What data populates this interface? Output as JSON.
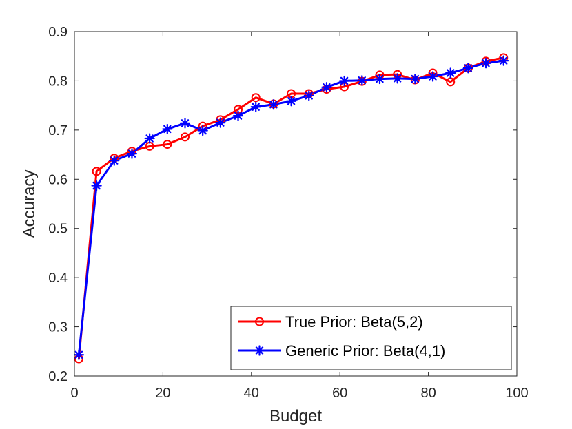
{
  "chart_data": {
    "type": "line",
    "xlabel": "Budget",
    "ylabel": "Accuracy",
    "xlim": [
      0,
      100
    ],
    "ylim": [
      0.2,
      0.9
    ],
    "xticks": [
      0,
      20,
      40,
      60,
      80,
      100
    ],
    "yticks": [
      0.2,
      0.3,
      0.4,
      0.5,
      0.6,
      0.7,
      0.8,
      0.9
    ],
    "xtick_labels": [
      "0",
      "20",
      "40",
      "60",
      "80",
      "100"
    ],
    "ytick_labels": [
      "0.2",
      "0.3",
      "0.4",
      "0.5",
      "0.6",
      "0.7",
      "0.8",
      "0.9"
    ],
    "grid": false,
    "legend_position": "bottom-right",
    "x": [
      1,
      5,
      9,
      13,
      17,
      21,
      25,
      29,
      33,
      37,
      41,
      45,
      49,
      53,
      57,
      61,
      65,
      69,
      73,
      77,
      81,
      85,
      89,
      93,
      97
    ],
    "series": [
      {
        "name": "True Prior: Beta(5,2)",
        "color": "#ff0000",
        "marker": "circle",
        "values": [
          0.235,
          0.616,
          0.643,
          0.657,
          0.667,
          0.671,
          0.686,
          0.708,
          0.721,
          0.742,
          0.766,
          0.753,
          0.774,
          0.774,
          0.783,
          0.788,
          0.799,
          0.812,
          0.813,
          0.802,
          0.816,
          0.798,
          0.826,
          0.84,
          0.847
        ]
      },
      {
        "name": "Generic Prior: Beta(4,1)",
        "color": "#0000ff",
        "marker": "asterisk",
        "values": [
          0.243,
          0.587,
          0.638,
          0.652,
          0.683,
          0.702,
          0.714,
          0.699,
          0.715,
          0.729,
          0.747,
          0.752,
          0.759,
          0.77,
          0.787,
          0.8,
          0.801,
          0.804,
          0.805,
          0.804,
          0.809,
          0.816,
          0.826,
          0.836,
          0.841
        ]
      }
    ]
  }
}
